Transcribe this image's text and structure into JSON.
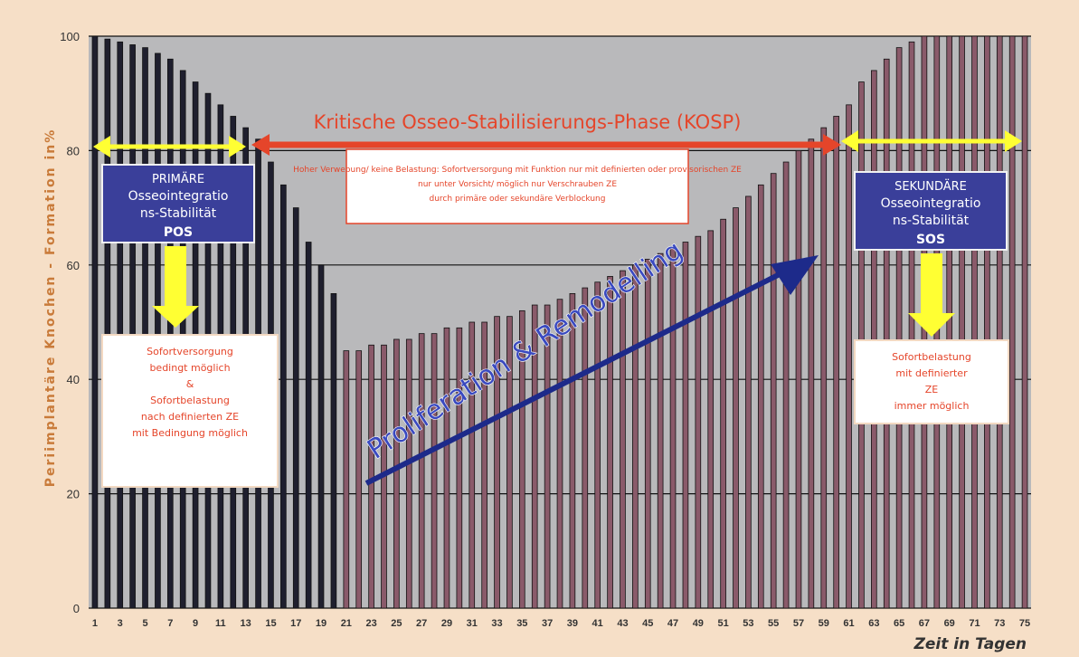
{
  "chart_data": {
    "type": "bar",
    "ylabel": "Periimplantäre Knochen - Formation in%",
    "xlabel": "Zeit in Tagen",
    "ylim": [
      0,
      100
    ],
    "yticks": [
      0,
      20,
      40,
      60,
      80,
      100
    ],
    "grid": true,
    "x": [
      1,
      2,
      3,
      4,
      5,
      6,
      7,
      8,
      9,
      10,
      11,
      12,
      13,
      14,
      15,
      16,
      17,
      18,
      19,
      20,
      21,
      22,
      23,
      24,
      25,
      26,
      27,
      28,
      29,
      30,
      31,
      32,
      33,
      34,
      35,
      36,
      37,
      38,
      39,
      40,
      41,
      42,
      43,
      44,
      45,
      46,
      47,
      48,
      49,
      50,
      51,
      52,
      53,
      54,
      55,
      56,
      57,
      58,
      59,
      60,
      61,
      62,
      63,
      64,
      65,
      66,
      67,
      68,
      69,
      70,
      71,
      72,
      73,
      74,
      75
    ],
    "xtick_labels": [
      "1",
      "3",
      "5",
      "7",
      "9",
      "11",
      "13",
      "15",
      "17",
      "19",
      "21",
      "23",
      "25",
      "27",
      "29",
      "31",
      "33",
      "35",
      "37",
      "39",
      "41",
      "43",
      "45",
      "47",
      "49",
      "51",
      "53",
      "55",
      "57",
      "59",
      "61",
      "63",
      "65",
      "67",
      "69",
      "71",
      "73",
      "75"
    ],
    "values": [
      100,
      99.5,
      99,
      98.5,
      98,
      97,
      96,
      94,
      92,
      90,
      88,
      86,
      84,
      82,
      78,
      74,
      70,
      64,
      60,
      55,
      45,
      45,
      46,
      46,
      47,
      47,
      48,
      48,
      49,
      49,
      50,
      50,
      51,
      51,
      52,
      53,
      53,
      54,
      55,
      56,
      57,
      58,
      59,
      60,
      61,
      62,
      63,
      64,
      65,
      66,
      68,
      70,
      72,
      74,
      76,
      78,
      80,
      82,
      84,
      86,
      88,
      92,
      94,
      96,
      98,
      99,
      100,
      100,
      100,
      100,
      100,
      100,
      100,
      100,
      100
    ],
    "bar_color_early": "#1f1f2e",
    "bar_color_late": "#8a5a6a",
    "plot_background": "#b9b9bb",
    "banner_title": "Kritische Osseo-Stabilisierungs-Phase (KOSP)",
    "banner_sub": [
      "Hoher Verwebung/ keine Belastung: Sofortversorgung mit Funktion nur mit definierten oder provisorischen ZE",
      "nur unter Vorsicht/ möglich nur Verschrauben ZE",
      "durch primäre oder sekundäre Verblockung"
    ],
    "pos_box": [
      "PRIMÄRE",
      "Osseointegratio",
      "ns-Stabilität"
    ],
    "pos_abbr": "POS",
    "sos_box": [
      "SEKUNDÄRE",
      "Osseointegratio",
      "ns-Stabilität"
    ],
    "sos_abbr": "SOS",
    "left_note": [
      "Sofortversorgung",
      "bedingt möglich",
      "&",
      "Sofortbelastung",
      "nach definierten ZE",
      "mit Bedingung möglich"
    ],
    "right_note": [
      "Sofortbelastung",
      "mit definierter",
      "ZE",
      "immer möglich"
    ],
    "diagonal_label": "Proliferation & Remodelling",
    "colors": {
      "accent_red": "#e5452a",
      "accent_yellow": "#ffff33",
      "box_blue": "#3a3f9a",
      "diag_blue": "#1d2a8a",
      "axis_text": "#c97b3a"
    }
  }
}
